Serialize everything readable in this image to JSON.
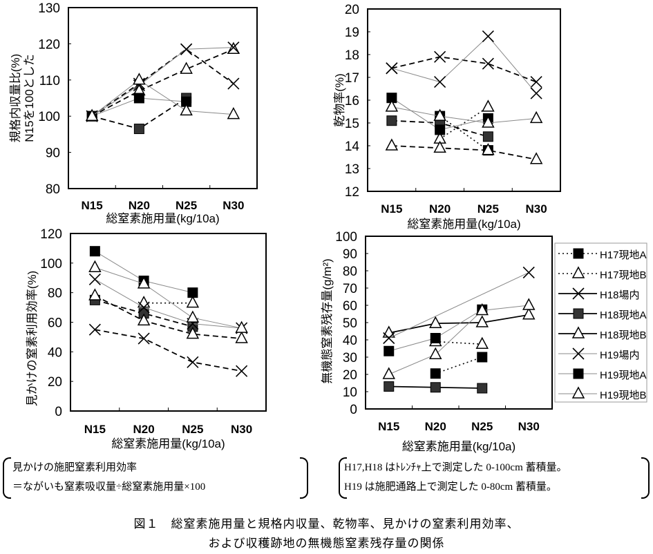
{
  "chart_data": [
    {
      "type": "line",
      "title": "",
      "xlabel": "総窒素施用量(kg/10a)",
      "ylabel": [
        "規格内収量比(%)",
        "N15を100とした"
      ],
      "categories": [
        "N15",
        "N20",
        "N25",
        "N30"
      ],
      "ylim": [
        80,
        130
      ],
      "yticks": [
        80,
        90,
        100,
        110,
        120,
        130
      ],
      "series": [
        {
          "name": "H18場内",
          "values": [
            100,
            109,
            118.5,
            109
          ]
        },
        {
          "name": "H18現地A",
          "values": [
            100,
            96.5,
            105,
            null
          ]
        },
        {
          "name": "H18現地B",
          "values": [
            100,
            107,
            113,
            118.5
          ]
        },
        {
          "name": "H19場内",
          "values": [
            100,
            108.5,
            118.5,
            119
          ]
        },
        {
          "name": "H19現地A",
          "values": [
            100,
            105,
            104,
            null
          ]
        },
        {
          "name": "H19現地B",
          "values": [
            100,
            110,
            101.5,
            100.5
          ]
        }
      ]
    },
    {
      "type": "line",
      "title": "",
      "xlabel": "総窒素施用量(kg/10a)",
      "ylabel": [
        "乾物率(%)"
      ],
      "categories": [
        "N15",
        "N20",
        "N25",
        "N30"
      ],
      "ylim": [
        12,
        20
      ],
      "yticks": [
        12,
        13,
        14,
        15,
        16,
        17,
        18,
        19,
        20
      ],
      "series": [
        {
          "name": "H17現地A",
          "values": [
            null,
            15.3,
            13.8,
            null
          ]
        },
        {
          "name": "H17現地B",
          "values": [
            null,
            14.3,
            15.7,
            null
          ]
        },
        {
          "name": "H18場内",
          "values": [
            17.4,
            17.9,
            17.6,
            16.8
          ]
        },
        {
          "name": "H18現地A",
          "values": [
            15.1,
            15.0,
            14.4,
            null
          ]
        },
        {
          "name": "H18現地B",
          "values": [
            14.0,
            13.9,
            13.8,
            13.4
          ]
        },
        {
          "name": "H19場内",
          "values": [
            17.4,
            16.8,
            18.8,
            16.3
          ]
        },
        {
          "name": "H19現地A",
          "values": [
            16.1,
            14.7,
            15.2,
            null
          ]
        },
        {
          "name": "H19現地B",
          "values": [
            15.7,
            15.3,
            15.0,
            15.2
          ]
        }
      ]
    },
    {
      "type": "line",
      "title": "",
      "xlabel": "総窒素施用量(kg/10a)",
      "ylabel": [
        "見かけの窒素利用効率(%)"
      ],
      "categories": [
        "N15",
        "N20",
        "N25",
        "N30"
      ],
      "ylim": [
        0,
        120
      ],
      "yticks": [
        0,
        20,
        40,
        60,
        80,
        100,
        120
      ],
      "series": [
        {
          "name": "H17現地B",
          "values": [
            null,
            73,
            73,
            null
          ]
        },
        {
          "name": "H18場内",
          "values": [
            55,
            49,
            33,
            27
          ]
        },
        {
          "name": "H18現地A",
          "values": [
            75,
            66,
            57,
            null
          ]
        },
        {
          "name": "H18現地B",
          "values": [
            78,
            61,
            52,
            49
          ]
        },
        {
          "name": "H19場内",
          "values": [
            89,
            70,
            59,
            56
          ]
        },
        {
          "name": "H19現地A",
          "values": [
            108,
            88,
            80,
            null
          ]
        },
        {
          "name": "H19現地B",
          "values": [
            97,
            86,
            63,
            56
          ]
        }
      ]
    },
    {
      "type": "line",
      "title": "",
      "xlabel": "総窒素施用量(kg/10a)",
      "ylabel": [
        "無機態窒素残存量(g/m²)"
      ],
      "categories": [
        "N15",
        "N20",
        "N25",
        "N30"
      ],
      "ylim": [
        0,
        100
      ],
      "yticks": [
        0,
        10,
        20,
        30,
        40,
        50,
        60,
        70,
        80,
        90,
        100
      ],
      "legend_position": "right",
      "legend": [
        "H17現地A",
        "H17現地B",
        "H18場内",
        "H18現地A",
        "H18現地B",
        "H19場内",
        "H19現地A",
        "H19現地B"
      ],
      "series": [
        {
          "name": "H17現地A",
          "values": [
            null,
            20.5,
            30,
            null
          ]
        },
        {
          "name": "H17現地B",
          "values": [
            null,
            39,
            37.5,
            null
          ]
        },
        {
          "name": "H18現地A",
          "values": [
            13,
            12.5,
            12,
            null
          ]
        },
        {
          "name": "H18現地B",
          "values": [
            44,
            49.5,
            50,
            54.5
          ]
        },
        {
          "name": "H19場内",
          "values": [
            41,
            null,
            null,
            79
          ]
        },
        {
          "name": "H19現地A",
          "values": [
            33.5,
            41,
            57.5,
            null
          ]
        },
        {
          "name": "H19現地B",
          "values": [
            20,
            31.5,
            57,
            60
          ]
        }
      ]
    }
  ],
  "notes": {
    "left": [
      "見かけの施肥窒素利用効率",
      "＝ながいも窒素吸収量÷総窒素施用量×100"
    ],
    "right": [
      "H17,H18 はﾄﾚﾝﾁｬ上で測定した 0-100cm 蓄積量。",
      "H19 は施肥通路上で測定した 0-80cm 蓄積量。"
    ]
  },
  "caption": [
    "図１　総窒素施用量と規格内収量、乾物率、見かけの窒素利用効率、",
    "および収穫跡地の無機態窒素残存量の関係"
  ]
}
